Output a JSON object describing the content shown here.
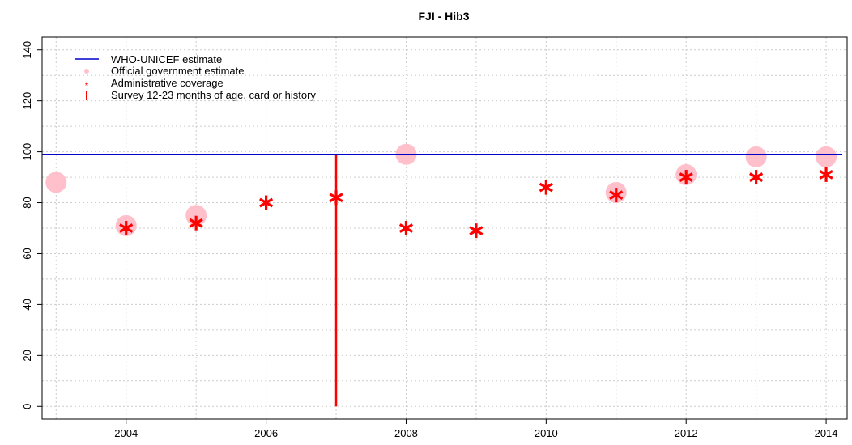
{
  "chart_data": {
    "type": "scatter",
    "title": "FJI  -  Hib3",
    "xlabel": "",
    "ylabel": "",
    "xlim": [
      2002.8,
      2014.3
    ],
    "ylim": [
      -5,
      145
    ],
    "x_ticks": [
      2004,
      2006,
      2008,
      2010,
      2012,
      2014
    ],
    "x_tick_labels": [
      "2004",
      "2006",
      "2008",
      "2010",
      "2012",
      "2014"
    ],
    "y_ticks": [
      0,
      20,
      40,
      60,
      80,
      100,
      120,
      140
    ],
    "y_tick_labels": [
      "0",
      "20",
      "40",
      "60",
      "80",
      "100",
      "120",
      "140"
    ],
    "grid": true,
    "legend_position": "top-left",
    "colors": {
      "who_unicef": "#0000cc",
      "official": "#ffc0cb",
      "administrative": "#ff0000",
      "survey": "#ff0000",
      "grid": "#cccccc"
    },
    "series": [
      {
        "name": "WHO-UNICEF estimate",
        "kind": "line",
        "x": [
          2003,
          2004,
          2005,
          2006,
          2007,
          2008,
          2009,
          2010,
          2011,
          2012,
          2013,
          2014
        ],
        "values": [
          99,
          99,
          99,
          99,
          99,
          99,
          99,
          99,
          99,
          99,
          99,
          99
        ]
      },
      {
        "name": "Official government estimate",
        "kind": "circle",
        "x": [
          2003,
          2004,
          2005,
          2008,
          2011,
          2012,
          2013,
          2014
        ],
        "values": [
          88,
          71,
          75,
          99,
          84,
          91,
          98,
          98
        ]
      },
      {
        "name": "Administrative coverage",
        "kind": "star",
        "x": [
          2004,
          2005,
          2006,
          2007,
          2008,
          2009,
          2010,
          2011,
          2012,
          2013,
          2014
        ],
        "values": [
          70,
          72,
          80,
          82,
          70,
          69,
          86,
          83,
          90,
          90,
          91
        ]
      },
      {
        "name": "Survey 12-23 months of age, card or history",
        "kind": "vbar",
        "x": [
          2007
        ],
        "values": [
          99
        ]
      }
    ]
  }
}
